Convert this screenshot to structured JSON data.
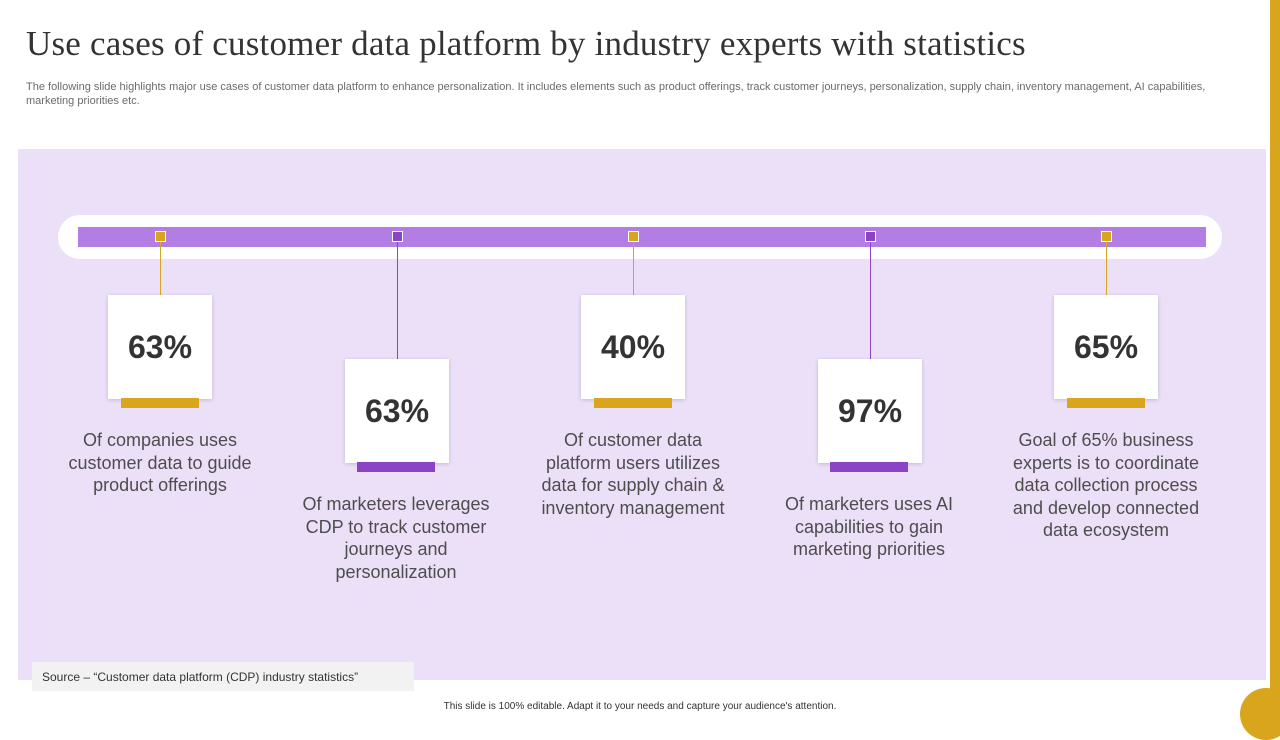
{
  "slide": {
    "title": "Use cases of  customer data platform by industry experts with statistics",
    "subtitle": "The following slide highlights major use cases of customer data platform to enhance personalization. It includes elements such as product offerings, track customer journeys, personalization, supply chain, inventory management, AI capabilities, marketing priorities etc.",
    "source": "Source – “Customer data platform (CDP) industry statistics”",
    "footer": "This slide is 100% editable. Adapt it to your needs and capture your audience's attention."
  },
  "colors": {
    "gold": "#d8a51d",
    "purple": "#8a44c4",
    "track": "#b27ee3",
    "panel": "#ece0f9"
  },
  "stats": [
    {
      "value": "63%",
      "description": "Of companies uses customer data to guide product offerings",
      "accent": "gold"
    },
    {
      "value": "63%",
      "description": "Of marketers leverages CDP to track customer journeys and personalization",
      "accent": "purple"
    },
    {
      "value": "40%",
      "description": "Of customer data platform users utilizes data for supply chain & inventory management",
      "accent": "gold"
    },
    {
      "value": "97%",
      "description": "Of marketers uses AI capabilities to gain marketing priorities",
      "accent": "purple"
    },
    {
      "value": "65%",
      "description": "Goal of 65% business experts is to coordinate data collection process and develop connected data ecosystem",
      "accent": "gold"
    }
  ]
}
